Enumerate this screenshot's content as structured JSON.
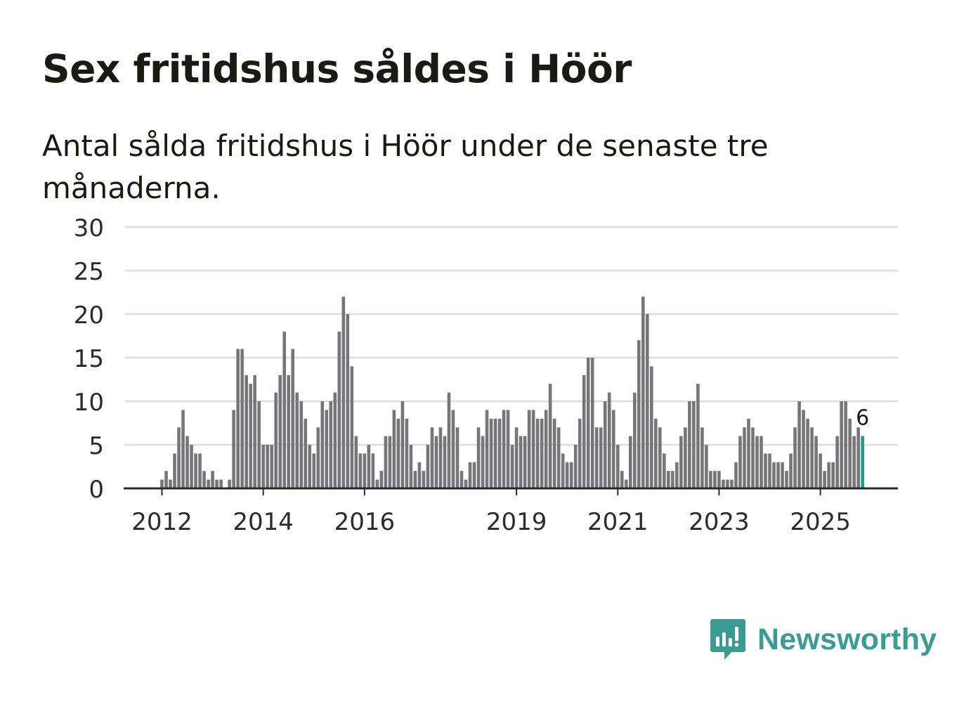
{
  "title": "Sex fritidshus såldes i Höör",
  "subtitle": "Antal sålda fritidshus i Höör under de senaste tre månaderna.",
  "brand": {
    "name": "Newsworthy",
    "icon": "bar-chart-speech-bubble-icon",
    "color": "#3c9c94"
  },
  "chart_data": {
    "type": "bar",
    "title": "Sex fritidshus såldes i Höör",
    "subtitle": "Antal sålda fritidshus i Höör under de senaste tre månaderna.",
    "xlabel": "",
    "ylabel": "",
    "ylim": [
      0,
      30
    ],
    "yticks": [
      0,
      5,
      10,
      15,
      20,
      25,
      30
    ],
    "grid": true,
    "legend": "none",
    "start_month": "2012-01",
    "frequency": "monthly",
    "x_tick_labels": [
      "2012",
      "2014",
      "2016",
      "2019",
      "2021",
      "2023",
      "2025"
    ],
    "values": [
      1,
      2,
      1,
      4,
      7,
      9,
      6,
      5,
      4,
      4,
      2,
      1,
      2,
      1,
      1,
      0,
      1,
      9,
      16,
      16,
      13,
      12,
      13,
      10,
      5,
      5,
      5,
      11,
      13,
      18,
      13,
      16,
      11,
      10,
      8,
      5,
      4,
      7,
      10,
      9,
      10,
      11,
      18,
      22,
      20,
      14,
      6,
      4,
      4,
      5,
      4,
      1,
      2,
      6,
      6,
      9,
      8,
      10,
      8,
      5,
      2,
      3,
      2,
      5,
      7,
      6,
      7,
      6,
      11,
      9,
      7,
      2,
      1,
      3,
      3,
      7,
      6,
      9,
      8,
      8,
      8,
      9,
      9,
      5,
      7,
      6,
      6,
      9,
      9,
      8,
      8,
      9,
      12,
      8,
      7,
      4,
      3,
      3,
      5,
      8,
      13,
      15,
      15,
      7,
      7,
      10,
      11,
      9,
      5,
      2,
      1,
      6,
      11,
      17,
      22,
      20,
      14,
      8,
      7,
      4,
      2,
      2,
      3,
      6,
      7,
      10,
      10,
      12,
      7,
      5,
      2,
      2,
      2,
      1,
      1,
      1,
      3,
      6,
      7,
      8,
      7,
      6,
      6,
      4,
      4,
      3,
      3,
      3,
      2,
      4,
      7,
      10,
      9,
      8,
      7,
      6,
      4,
      2,
      3,
      3,
      6,
      10,
      10,
      8,
      6,
      7,
      6
    ],
    "bar_color": "#76767a",
    "highlight_color": "#1a9a96",
    "highlight_last": true,
    "last_value_label": "6"
  }
}
